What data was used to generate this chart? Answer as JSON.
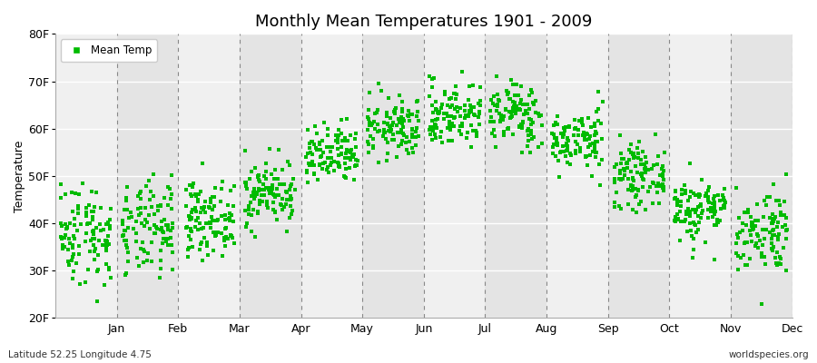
{
  "title": "Monthly Mean Temperatures 1901 - 2009",
  "ylabel": "Temperature",
  "xlabel_labels": [
    "Jan",
    "Feb",
    "Mar",
    "Apr",
    "May",
    "Jun",
    "Jul",
    "Aug",
    "Sep",
    "Oct",
    "Nov",
    "Dec"
  ],
  "ytick_labels": [
    "20F",
    "30F",
    "40F",
    "50F",
    "60F",
    "70F",
    "80F"
  ],
  "ytick_values": [
    20,
    30,
    40,
    50,
    60,
    70,
    80
  ],
  "ylim": [
    20,
    80
  ],
  "dot_color": "#00bb00",
  "legend_label": "Mean Temp",
  "subtitle_left": "Latitude 52.25 Longitude 4.75",
  "subtitle_right": "worldspecies.org",
  "background_color": "#ffffff",
  "band_light": "#f0f0f0",
  "band_dark": "#e4e4e4",
  "monthly_means_F": [
    38.0,
    38.5,
    41.0,
    46.5,
    54.0,
    60.0,
    63.0,
    63.0,
    57.5,
    50.0,
    43.0,
    38.5
  ],
  "monthly_stds_F": [
    5.5,
    5.0,
    3.8,
    3.5,
    3.2,
    3.2,
    3.5,
    3.5,
    3.2,
    3.2,
    3.5,
    4.5
  ],
  "n_years": 109,
  "figsize": [
    9.0,
    4.0
  ],
  "dpi": 100
}
